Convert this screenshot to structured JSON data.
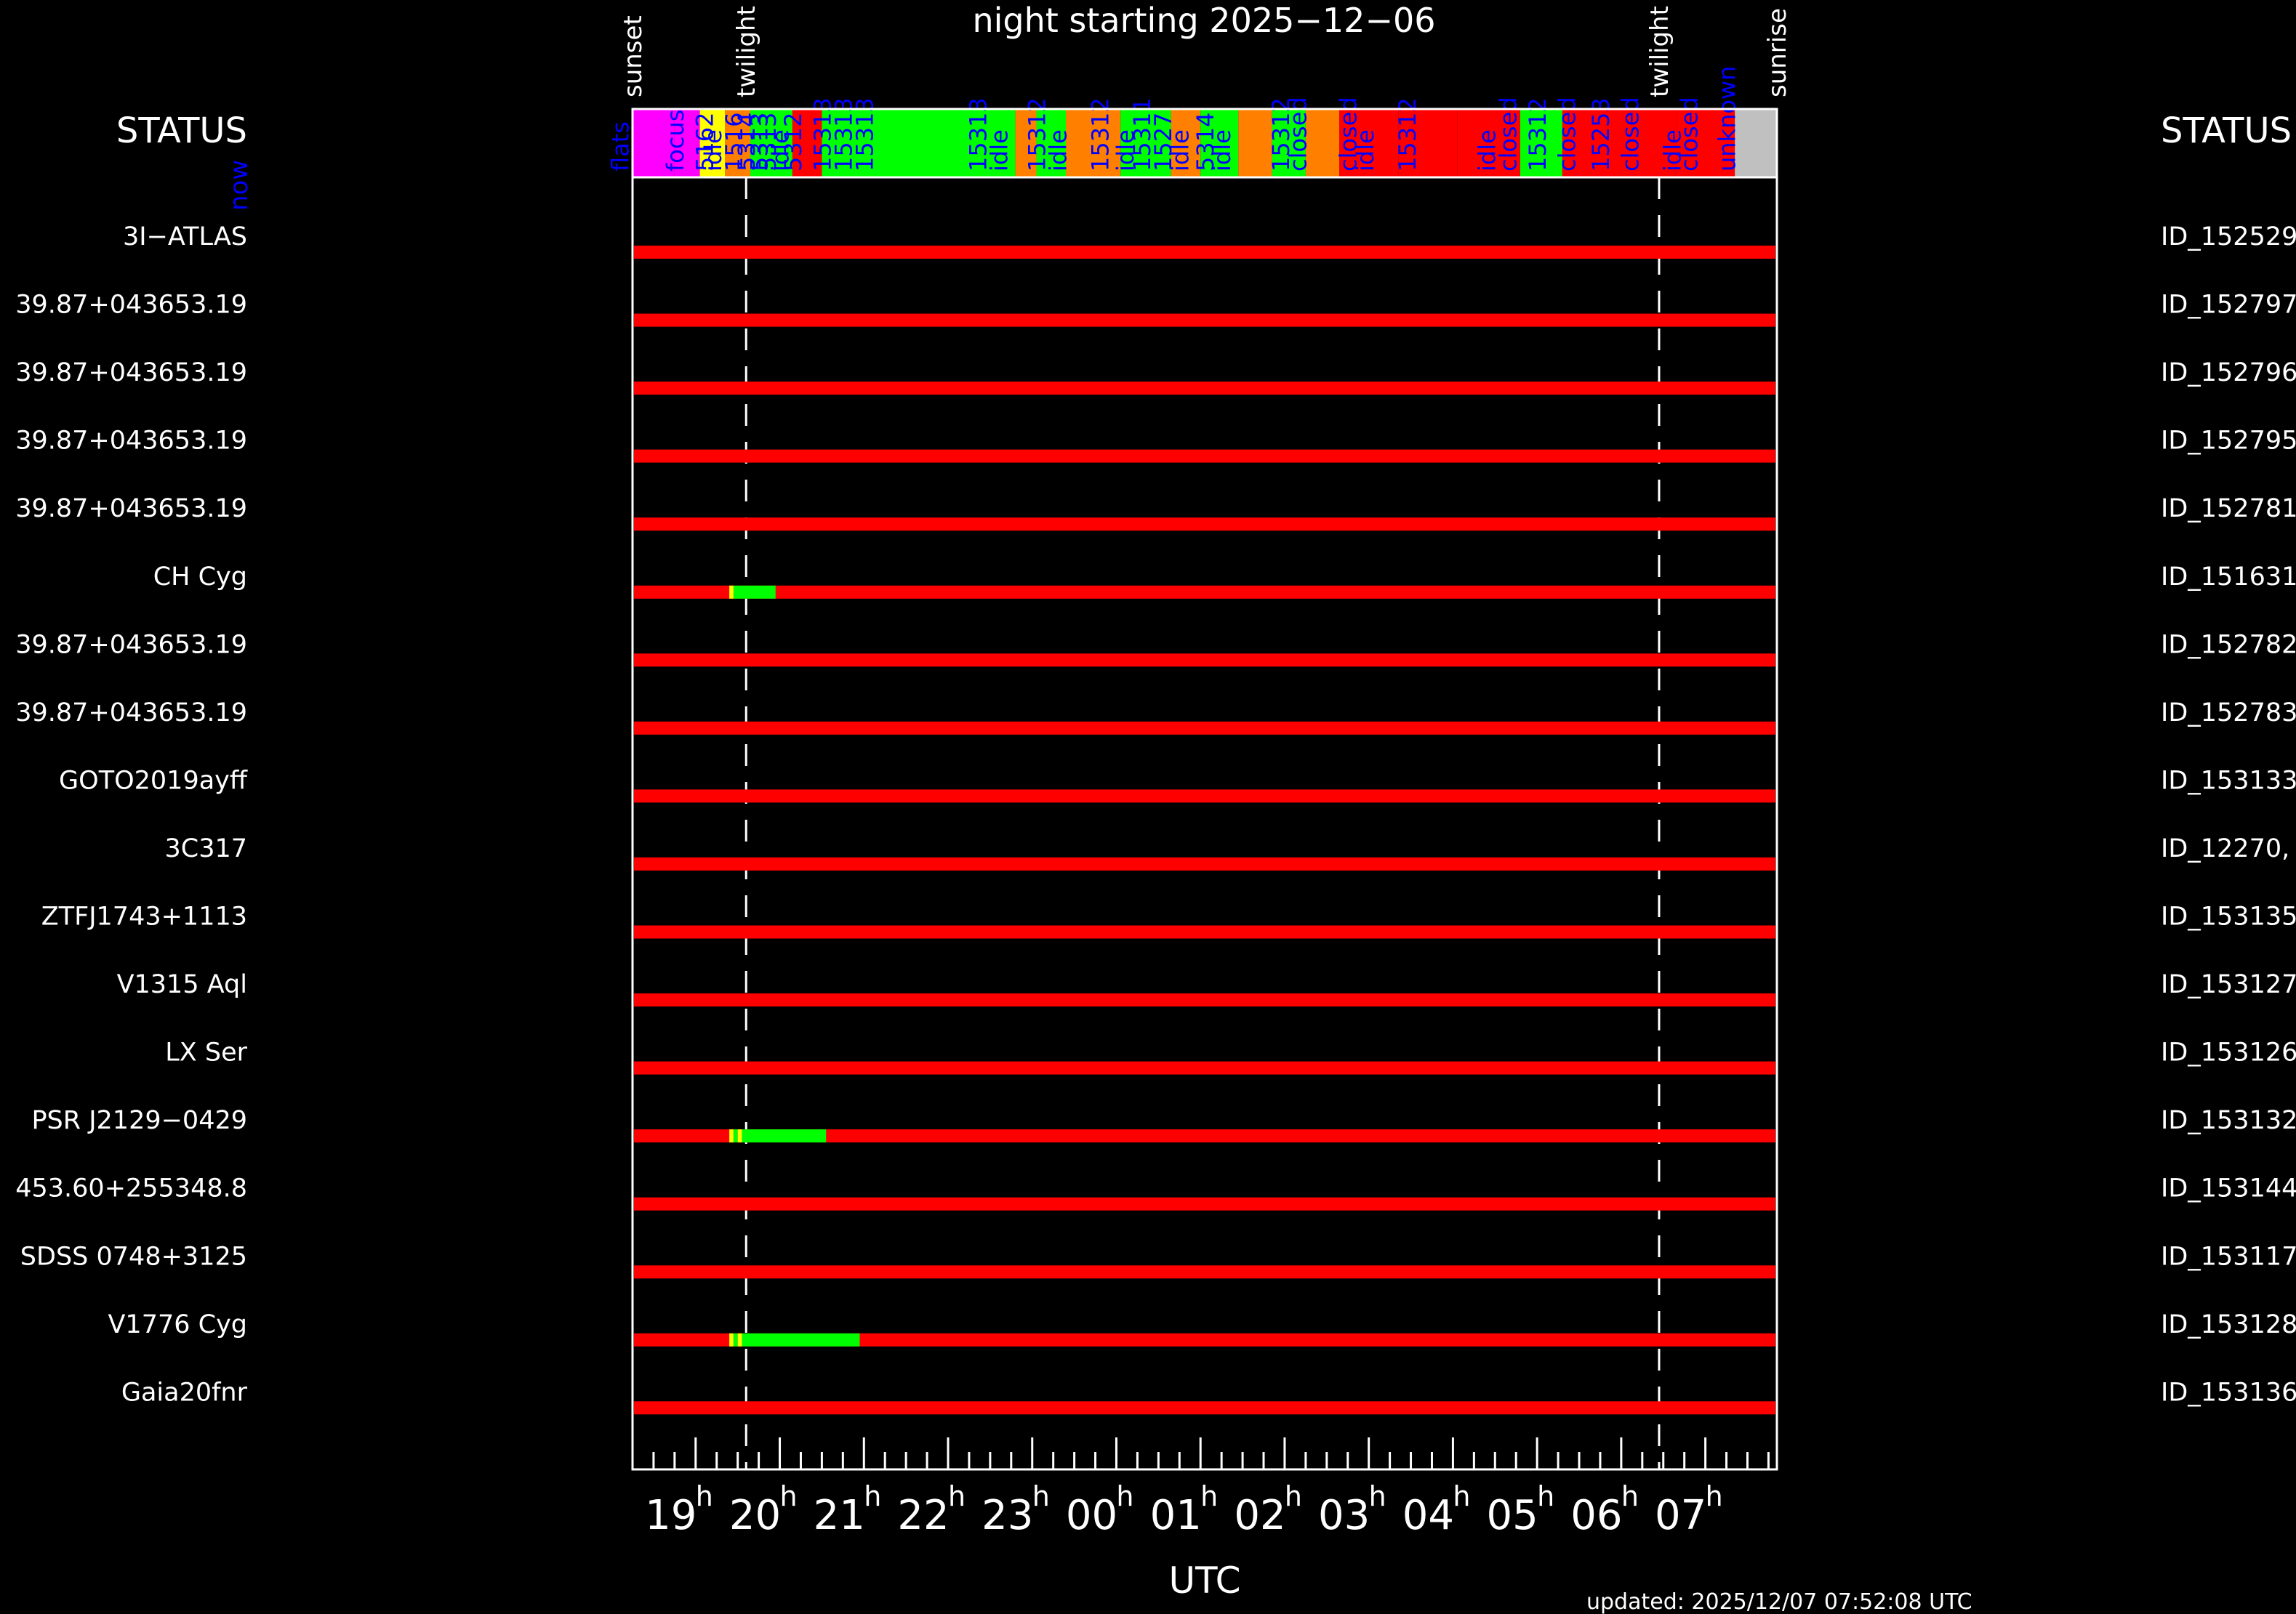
{
  "title": "night starting 2025−12−06",
  "status_left": "STATUS",
  "status_right": "STATUS",
  "now_label": "now",
  "xlabel": "UTC",
  "updated": "updated: 2025/12/07 07:52:08 UTC",
  "colors": {
    "background": "#000000",
    "frame": "#ffffff",
    "not_observed": "#ff0000",
    "observed": "#00ff00",
    "started": "#ffff00",
    "closed": "#ff8000",
    "flats": "#ff00ff",
    "unknown": "#c0c0c0",
    "label_blue": "#0000ff"
  },
  "chart_data": {
    "type": "gantt",
    "x_unit": "hours UTC (continuous from 00:00 on 2025-12-06)",
    "xlim": [
      18.25,
      31.85
    ],
    "x_ticks": [
      {
        "x": 19,
        "label": "19"
      },
      {
        "x": 20,
        "label": "20"
      },
      {
        "x": 21,
        "label": "21"
      },
      {
        "x": 22,
        "label": "22"
      },
      {
        "x": 23,
        "label": "23"
      },
      {
        "x": 24,
        "label": "00"
      },
      {
        "x": 25,
        "label": "01"
      },
      {
        "x": 26,
        "label": "02"
      },
      {
        "x": 27,
        "label": "03"
      },
      {
        "x": 28,
        "label": "04"
      },
      {
        "x": 29,
        "label": "05"
      },
      {
        "x": 30,
        "label": "06"
      },
      {
        "x": 31,
        "label": "07"
      }
    ],
    "tick_suffix": "h",
    "events": [
      {
        "label": "sunset",
        "x": 18.25,
        "line": false
      },
      {
        "label": "twilight",
        "x": 19.6,
        "line": true
      },
      {
        "label": "twilight",
        "x": 30.45,
        "line": true
      },
      {
        "label": "sunrise",
        "x": 31.85,
        "line": false
      }
    ],
    "status_bar": [
      {
        "start": 18.25,
        "end": 18.75,
        "color": "#ff00ff"
      },
      {
        "start": 18.75,
        "end": 19.05,
        "color": "#ff00ff"
      },
      {
        "start": 19.05,
        "end": 19.35,
        "color": "#ffff00"
      },
      {
        "start": 19.35,
        "end": 19.65,
        "color": "#ff8000"
      },
      {
        "start": 19.65,
        "end": 20.15,
        "color": "#00ff00"
      },
      {
        "start": 20.15,
        "end": 20.5,
        "color": "#ff0000"
      },
      {
        "start": 20.5,
        "end": 22.8,
        "color": "#00ff00"
      },
      {
        "start": 22.8,
        "end": 23.05,
        "color": "#ff8000"
      },
      {
        "start": 23.05,
        "end": 23.4,
        "color": "#00ff00"
      },
      {
        "start": 23.4,
        "end": 24.05,
        "color": "#ff8000"
      },
      {
        "start": 24.05,
        "end": 24.65,
        "color": "#00ff00"
      },
      {
        "start": 24.65,
        "end": 25.0,
        "color": "#ff8000"
      },
      {
        "start": 25.0,
        "end": 25.45,
        "color": "#00ff00"
      },
      {
        "start": 25.45,
        "end": 25.85,
        "color": "#ff8000"
      },
      {
        "start": 25.85,
        "end": 26.25,
        "color": "#00ff00"
      },
      {
        "start": 26.25,
        "end": 26.65,
        "color": "#ff8000"
      },
      {
        "start": 26.65,
        "end": 27.35,
        "color": "#ff0000"
      },
      {
        "start": 27.35,
        "end": 28.05,
        "color": "#ff0000"
      },
      {
        "start": 28.05,
        "end": 28.8,
        "color": "#ff0000"
      },
      {
        "start": 28.8,
        "end": 29.3,
        "color": "#00ff00"
      },
      {
        "start": 29.3,
        "end": 30.65,
        "color": "#ff0000"
      },
      {
        "start": 30.65,
        "end": 31.35,
        "color": "#ff0000"
      },
      {
        "start": 31.35,
        "end": 31.85,
        "color": "#c0c0c0"
      }
    ],
    "status_labels": [
      {
        "x": 18.1,
        "text": "flats"
      },
      {
        "x": 18.75,
        "text": "focus"
      },
      {
        "x": 19.1,
        "text": "5162"
      },
      {
        "x": 19.2,
        "text": "idle"
      },
      {
        "x": 19.45,
        "text": "1516"
      },
      {
        "x": 19.6,
        "text": "5314"
      },
      {
        "x": 19.75,
        "text": "5313"
      },
      {
        "x": 19.85,
        "text": "5313"
      },
      {
        "x": 20.0,
        "text": "idle"
      },
      {
        "x": 20.15,
        "text": "5312"
      },
      {
        "x": 20.5,
        "text": "15313"
      },
      {
        "x": 20.75,
        "text": "15313"
      },
      {
        "x": 21.0,
        "text": "15313"
      },
      {
        "x": 22.35,
        "text": "15313"
      },
      {
        "x": 22.6,
        "text": "idle"
      },
      {
        "x": 23.05,
        "text": "15312"
      },
      {
        "x": 23.3,
        "text": "idle"
      },
      {
        "x": 23.8,
        "text": "15312"
      },
      {
        "x": 24.1,
        "text": "idle"
      },
      {
        "x": 24.3,
        "text": "15311"
      },
      {
        "x": 24.55,
        "text": "1527"
      },
      {
        "x": 24.75,
        "text": "idle"
      },
      {
        "x": 25.05,
        "text": "5314"
      },
      {
        "x": 25.25,
        "text": "idle"
      },
      {
        "x": 25.95,
        "text": "15312"
      },
      {
        "x": 26.15,
        "text": "closed"
      },
      {
        "x": 26.75,
        "text": "closed"
      },
      {
        "x": 26.95,
        "text": "idle"
      },
      {
        "x": 27.45,
        "text": "15312"
      },
      {
        "x": 28.4,
        "text": "idle"
      },
      {
        "x": 28.65,
        "text": "closed"
      },
      {
        "x": 29.0,
        "text": "15312"
      },
      {
        "x": 29.35,
        "text": "closed"
      },
      {
        "x": 29.75,
        "text": "15253"
      },
      {
        "x": 30.1,
        "text": "closed"
      },
      {
        "x": 30.6,
        "text": "idle"
      },
      {
        "x": 30.8,
        "text": "closed"
      },
      {
        "x": 31.25,
        "text": "unknown"
      }
    ],
    "targets": [
      {
        "name": "3I−ATLAS",
        "id": "ID_152529",
        "segments": []
      },
      {
        "name": "39.87+043653.19",
        "id": "ID_152797",
        "segments": []
      },
      {
        "name": "39.87+043653.19",
        "id": "ID_152796",
        "segments": []
      },
      {
        "name": "39.87+043653.19",
        "id": "ID_152795",
        "segments": []
      },
      {
        "name": "39.87+043653.19",
        "id": "ID_152781",
        "segments": []
      },
      {
        "name": "CH Cyg",
        "id": "ID_151631",
        "segments": [
          {
            "start": 19.4,
            "end": 19.45,
            "color": "#ffff00"
          },
          {
            "start": 19.45,
            "end": 19.95,
            "color": "#00ff00"
          }
        ]
      },
      {
        "name": "39.87+043653.19",
        "id": "ID_152782",
        "segments": []
      },
      {
        "name": "39.87+043653.19",
        "id": "ID_152783",
        "segments": []
      },
      {
        "name": "GOTO2019ayff",
        "id": "ID_153133",
        "segments": []
      },
      {
        "name": "3C317",
        "id": "ID_12270,",
        "segments": []
      },
      {
        "name": "ZTFJ1743+1113",
        "id": "ID_153135",
        "segments": []
      },
      {
        "name": "V1315 Aql",
        "id": "ID_153127",
        "segments": []
      },
      {
        "name": "LX Ser",
        "id": "ID_153126",
        "segments": []
      },
      {
        "name": "PSR J2129−0429",
        "id": "ID_153132",
        "segments": [
          {
            "start": 19.4,
            "end": 19.45,
            "color": "#ffff00"
          },
          {
            "start": 19.45,
            "end": 19.5,
            "color": "#00ff00"
          },
          {
            "start": 19.5,
            "end": 19.55,
            "color": "#ffff00"
          },
          {
            "start": 19.55,
            "end": 20.55,
            "color": "#00ff00"
          }
        ]
      },
      {
        "name": "453.60+255348.8",
        "id": "ID_153144",
        "segments": []
      },
      {
        "name": "SDSS 0748+3125",
        "id": "ID_153117",
        "segments": []
      },
      {
        "name": "V1776 Cyg",
        "id": "ID_153128",
        "segments": [
          {
            "start": 19.4,
            "end": 19.45,
            "color": "#ffff00"
          },
          {
            "start": 19.45,
            "end": 19.5,
            "color": "#00ff00"
          },
          {
            "start": 19.5,
            "end": 19.55,
            "color": "#ffff00"
          },
          {
            "start": 19.55,
            "end": 20.95,
            "color": "#00ff00"
          }
        ]
      },
      {
        "name": "Gaia20fnr",
        "id": "ID_153136",
        "segments": []
      }
    ]
  }
}
